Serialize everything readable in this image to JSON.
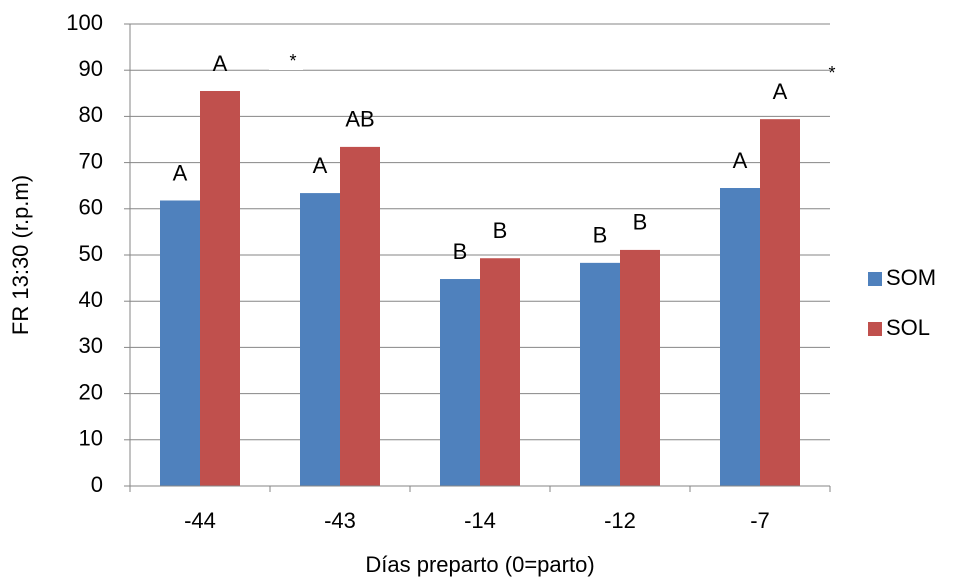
{
  "chart_data": {
    "type": "bar",
    "y_label": "FR 13:30 (r.p.m)",
    "x_label": "Días preparto (0=parto)",
    "categories": [
      "-44",
      "-43",
      "-14",
      "-12",
      "-7"
    ],
    "series": [
      {
        "name": "SOM",
        "color": "#4f81bd",
        "values": [
          61.8,
          63.4,
          44.8,
          48.3,
          64.5
        ],
        "letters": [
          "A",
          "A",
          "B",
          "B",
          "A"
        ]
      },
      {
        "name": "SOL",
        "color": "#c0504d",
        "values": [
          85.5,
          73.4,
          49.3,
          51.1,
          79.4
        ],
        "letters": [
          "A",
          "AB",
          "B",
          "B",
          "A"
        ]
      }
    ],
    "significance": [
      "*",
      null,
      null,
      null,
      "*"
    ],
    "ylim": [
      0,
      100
    ],
    "yticks": [
      0,
      10,
      20,
      30,
      40,
      50,
      60,
      70,
      80,
      90,
      100
    ],
    "grid": true,
    "legend": "right"
  }
}
